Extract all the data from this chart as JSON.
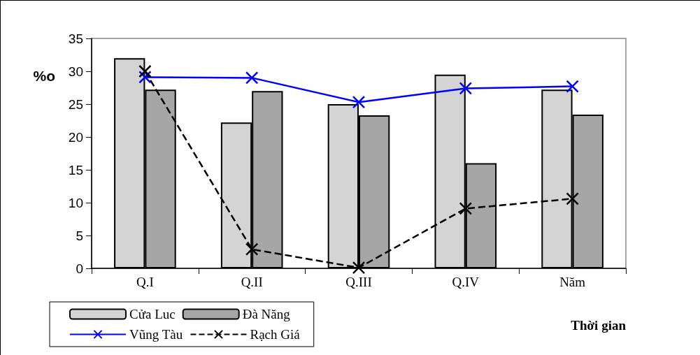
{
  "chart_data": {
    "type": "bar",
    "xlabel": "Thời gian",
    "ylabel": "%o",
    "categories": [
      "Q.I",
      "Q.II",
      "Q.III",
      "Q.IV",
      "Năm"
    ],
    "series": [
      {
        "name": "Cửa Luc",
        "color": "#d4d4d4",
        "values": [
          32.0,
          22.2,
          25.0,
          29.5,
          27.2
        ]
      },
      {
        "name": "Đà Năng",
        "color": "#a6a6a6",
        "values": [
          27.2,
          27.0,
          23.3,
          16.0,
          23.4
        ]
      },
      {
        "name": "Vũng Tàu",
        "type": "line",
        "color": "#0000ff",
        "marker": "cross",
        "line_style": "solid",
        "values": [
          29.1,
          29.0,
          25.3,
          27.4,
          27.7
        ]
      },
      {
        "name": "Rạch Giá",
        "type": "line",
        "color": "#000000",
        "marker": "cross",
        "line_style": "dashed",
        "values": [
          30.0,
          2.9,
          0.1,
          9.1,
          10.6
        ]
      }
    ],
    "ylim": [
      0,
      35
    ],
    "yticks": [
      0,
      5,
      10,
      15,
      20,
      25,
      30,
      35
    ],
    "grid": false,
    "legend": "bottom left"
  }
}
